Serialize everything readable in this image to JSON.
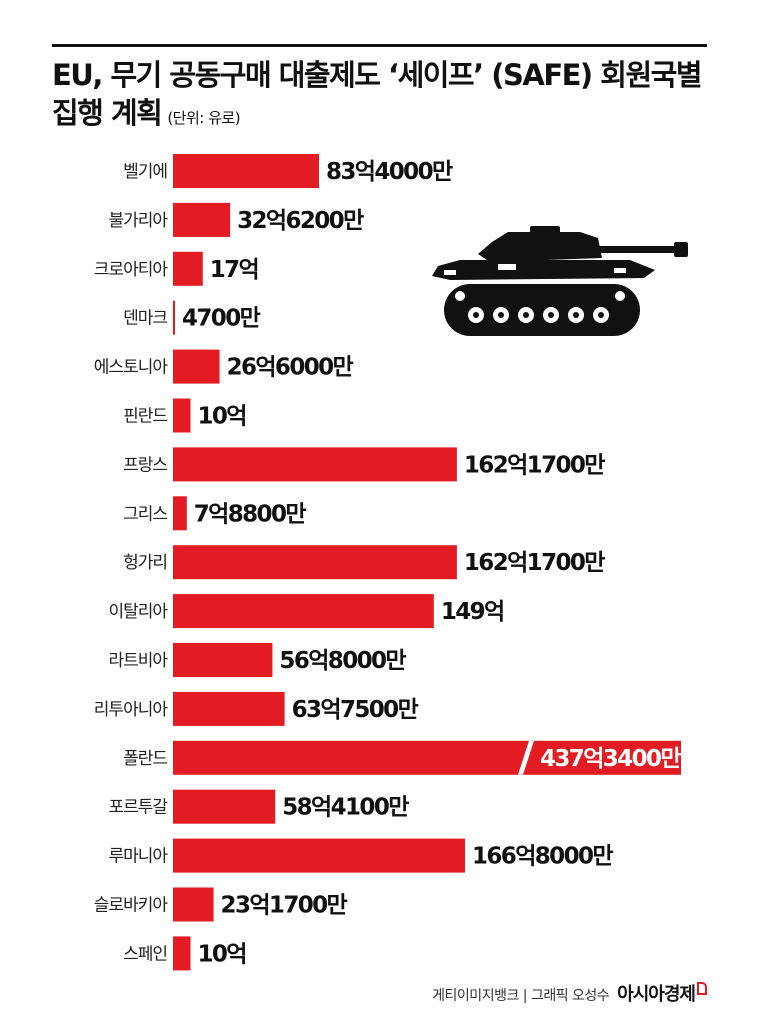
{
  "header": {
    "title_line1": "EU, 무기 공동구매 대출제도 ‘세이프’ (SAFE) 회원국별",
    "title_line2": "집행 계획",
    "unit": "(단위: 유로)"
  },
  "footer": {
    "credit": "게티이미지뱅크 | 그래픽 오성수",
    "brand": "아시아경제"
  },
  "colors": {
    "bar": "#e31b23",
    "text": "#111111"
  },
  "icons": {
    "illustration": "tank-icon"
  },
  "chart_data": {
    "type": "bar",
    "orientation": "horizontal",
    "categories": [
      "벨기에",
      "불가리아",
      "크로아티아",
      "덴마크",
      "에스토니아",
      "핀란드",
      "프랑스",
      "그리스",
      "헝가리",
      "이탈리아",
      "라트비아",
      "리투아니아",
      "폴란드",
      "포르투갈",
      "루마니아",
      "슬로바키아",
      "스페인"
    ],
    "values": [
      8340000000,
      3262000000,
      1700000000,
      47000000,
      2660000000,
      1000000000,
      16217000000,
      788000000,
      16217000000,
      14900000000,
      5680000000,
      6375000000,
      43734000000,
      5841000000,
      16680000000,
      2317000000,
      1000000000
    ],
    "value_labels": [
      "83억4000만",
      "32억6200만",
      "17억",
      "4700만",
      "26억6000만",
      "10억",
      "162억1700만",
      "7억8800만",
      "162억1700만",
      "149억",
      "56억8000만",
      "63억7500만",
      "437억3400만",
      "58억4100만",
      "166억8000만",
      "23억1700만",
      "10억"
    ],
    "broken_bar": "폴란드",
    "title": "EU, 무기 공동구매 대출제도 ‘세이프’ (SAFE) 회원국별 집행 계획",
    "unit": "(단위: 유로)",
    "grid": false,
    "legend": "none"
  }
}
